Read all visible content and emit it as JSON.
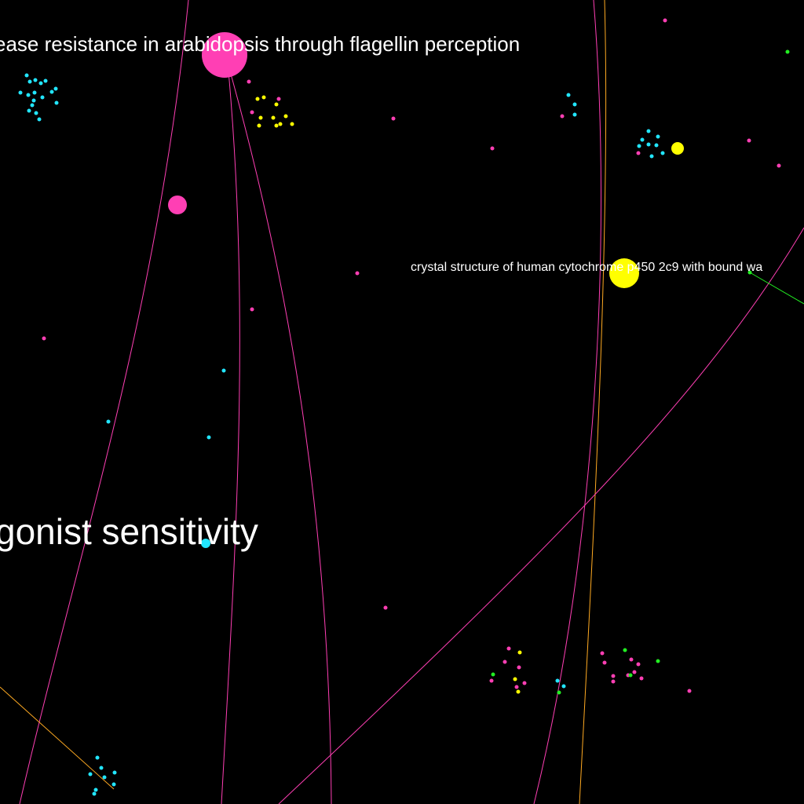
{
  "colors": {
    "background": "#000000",
    "pink": "#ff3fb4",
    "yellow": "#ffff00",
    "cyan": "#22e6ff",
    "green": "#22ee22",
    "orange": "#ffaa22",
    "label": "#ffffff"
  },
  "labels": {
    "arabidopsis": "ease resistance in arabidopsis through flagellin perception",
    "cytochrome": "crystal structure of human cytochrome p450 2c9 with bound wa",
    "agonist": "gonist sensitivity"
  }
}
